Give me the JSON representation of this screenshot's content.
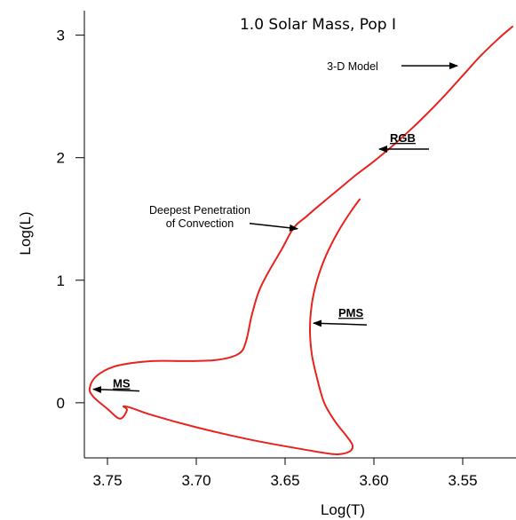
{
  "chart_data": {
    "type": "line",
    "title": "1.0 Solar Mass, Pop I",
    "xlabel": "Log(T)",
    "ylabel": "Log(L)",
    "x_reversed": true,
    "xlim": [
      3.763,
      3.52
    ],
    "ylim": [
      -0.45,
      3.2
    ],
    "x_ticks": [
      3.75,
      3.7,
      3.65,
      3.6,
      3.55
    ],
    "x_tick_labels": [
      "3.75",
      "3.70",
      "3.65",
      "3.60",
      "3.55"
    ],
    "y_ticks": [
      0,
      1,
      2,
      3
    ],
    "y_tick_labels": [
      "0",
      "1",
      "2",
      "3"
    ],
    "line_color": "#e8231f",
    "series": [
      {
        "values": [
          [
            3.608,
            1.66
          ],
          [
            3.613,
            1.56
          ],
          [
            3.62,
            1.4
          ],
          [
            3.627,
            1.2
          ],
          [
            3.632,
            1.0
          ],
          [
            3.635,
            0.8
          ],
          [
            3.636,
            0.6
          ],
          [
            3.635,
            0.4
          ],
          [
            3.632,
            0.2
          ],
          [
            3.628,
            0.0
          ],
          [
            3.622,
            -0.15
          ],
          [
            3.615,
            -0.28
          ],
          [
            3.612,
            -0.35
          ],
          [
            3.614,
            -0.4
          ],
          [
            3.622,
            -0.42
          ],
          [
            3.64,
            -0.38
          ],
          [
            3.67,
            -0.3
          ],
          [
            3.7,
            -0.2
          ],
          [
            3.725,
            -0.1
          ],
          [
            3.737,
            -0.04
          ],
          [
            3.741,
            -0.03
          ],
          [
            3.739,
            -0.06
          ],
          [
            3.743,
            -0.13
          ],
          [
            3.75,
            -0.05
          ],
          [
            3.758,
            0.05
          ],
          [
            3.76,
            0.12
          ],
          [
            3.756,
            0.22
          ],
          [
            3.745,
            0.3
          ],
          [
            3.725,
            0.34
          ],
          [
            3.705,
            0.34
          ],
          [
            3.688,
            0.35
          ],
          [
            3.676,
            0.4
          ],
          [
            3.672,
            0.5
          ],
          [
            3.669,
            0.7
          ],
          [
            3.665,
            0.9
          ],
          [
            3.66,
            1.05
          ],
          [
            3.652,
            1.25
          ],
          [
            3.645,
            1.43
          ],
          [
            3.638,
            1.52
          ],
          [
            3.63,
            1.62
          ],
          [
            3.62,
            1.74
          ],
          [
            3.61,
            1.86
          ],
          [
            3.6,
            1.97
          ],
          [
            3.59,
            2.09
          ],
          [
            3.58,
            2.22
          ],
          [
            3.57,
            2.36
          ],
          [
            3.56,
            2.51
          ],
          [
            3.55,
            2.67
          ],
          [
            3.54,
            2.83
          ],
          [
            3.53,
            2.97
          ],
          [
            3.522,
            3.07
          ]
        ]
      }
    ],
    "annotations": [
      {
        "text": "3-D Model",
        "style": "normal",
        "lines": [
          "3-D Model"
        ],
        "point": [
          3.553,
          2.75
        ]
      },
      {
        "text": "RGB",
        "style": "bold",
        "lines": [
          "RGB"
        ],
        "point": [
          3.597,
          2.07
        ]
      },
      {
        "text": "Deepest Penetration of Convection",
        "style": "normal",
        "lines": [
          "Deepest Penetration",
          "of Convection"
        ],
        "point": [
          3.643,
          1.42
        ]
      },
      {
        "text": "PMS",
        "style": "bold",
        "lines": [
          "PMS"
        ],
        "point": [
          3.634,
          0.65
        ]
      },
      {
        "text": "MS",
        "style": "bold",
        "lines": [
          "MS"
        ],
        "point": [
          3.758,
          0.11
        ]
      }
    ]
  }
}
